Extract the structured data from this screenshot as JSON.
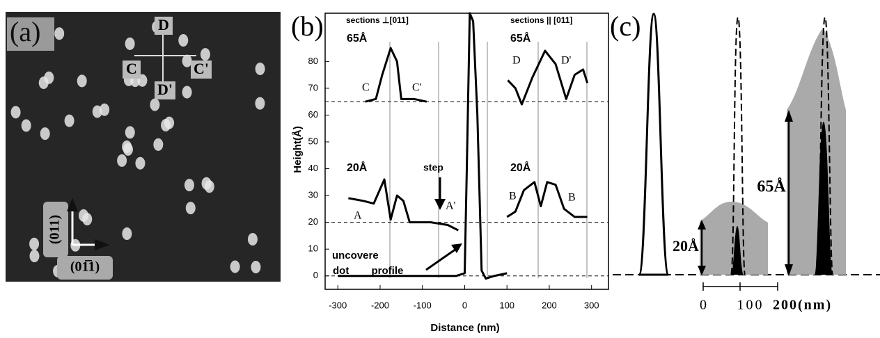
{
  "panel_a": {
    "label": "(a)",
    "markers": [
      "D",
      "C",
      "C'",
      "D'"
    ],
    "directions": [
      "(011)",
      "(01̅1)"
    ]
  },
  "chart_data": {
    "type": "line",
    "label": "(b)",
    "y_label": "Height(Å)",
    "x_label": "Distance (nm)",
    "xlim": [
      -330,
      340
    ],
    "ylim": [
      -5,
      98
    ],
    "xticks": [
      -300,
      -200,
      -100,
      0,
      100,
      200,
      300
    ],
    "yticks": [
      0,
      10,
      20,
      30,
      40,
      50,
      60,
      70,
      80
    ],
    "hlines": [
      65,
      20,
      0
    ],
    "series": [
      {
        "color": "#000000",
        "x": [
          -300,
          -200,
          -100,
          -20,
          0,
          5,
          12,
          20,
          30,
          40,
          50,
          70,
          100
        ],
        "values": [
          0,
          0,
          0,
          0,
          1,
          40,
          98,
          95,
          60,
          2,
          -1,
          0,
          1
        ]
      },
      {
        "color": "#000000",
        "x": [
          -235,
          -210,
          -195,
          -175,
          -160,
          -150,
          -120,
          -90
        ],
        "values": [
          65,
          66,
          75,
          85,
          80,
          66,
          66,
          65
        ]
      },
      {
        "color": "#000000",
        "x": [
          -275,
          -240,
          -215,
          -190,
          -175,
          -160,
          -145,
          -130,
          -80,
          -40,
          -15
        ],
        "values": [
          29,
          28,
          27,
          36,
          21,
          30,
          28,
          20,
          20,
          19,
          17
        ]
      },
      {
        "color": "#000000",
        "x": [
          102,
          120,
          135,
          160,
          190,
          215,
          240,
          260,
          280,
          290
        ],
        "values": [
          73,
          70,
          64,
          74,
          84,
          79,
          66,
          75,
          77,
          72
        ]
      },
      {
        "color": "#000000",
        "x": [
          100,
          120,
          140,
          165,
          180,
          195,
          215,
          235,
          260,
          290
        ],
        "values": [
          22,
          24,
          32,
          35,
          26,
          35,
          34,
          25,
          22,
          22
        ]
      }
    ],
    "annotations": [
      "sections ⊥[011]",
      "sections || [011]",
      "65Å",
      "65Å",
      "C",
      "C'",
      "D",
      "D'",
      "20Å",
      "20Å",
      "step",
      "A",
      "A'",
      "B",
      "B",
      "uncovere",
      "dot profile"
    ]
  },
  "panel_c": {
    "label": "(c)",
    "heights": [
      "20Å",
      "65Å"
    ],
    "scale": [
      "0",
      "100",
      "200(nm)"
    ]
  }
}
